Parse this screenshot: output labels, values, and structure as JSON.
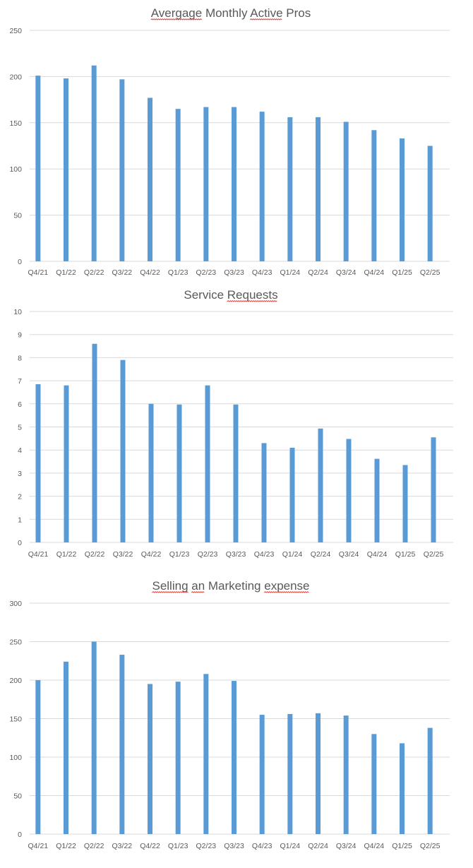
{
  "chart_data": [
    {
      "type": "bar",
      "title": "Avergage Monthly Active Pros",
      "categories": [
        "Q4/21",
        "Q1/22",
        "Q2/22",
        "Q3/22",
        "Q4/22",
        "Q1/23",
        "Q2/23",
        "Q3/23",
        "Q4/23",
        "Q1/24",
        "Q2/24",
        "Q3/24",
        "Q4/24",
        "Q1/25",
        "Q2/25"
      ],
      "values": [
        201,
        198,
        212,
        197,
        177,
        165,
        167,
        167,
        162,
        156,
        156,
        151,
        142,
        133,
        125
      ],
      "ylim": [
        0,
        250
      ],
      "yticks": [
        "0",
        "50",
        "100",
        "150",
        "200",
        "250"
      ],
      "xlabel": "",
      "ylabel": "",
      "grid": true,
      "bar_color": "#5b9bd5",
      "spellcheck_words": [
        "Avergage",
        "Active"
      ]
    },
    {
      "type": "bar",
      "title": "Service Requests",
      "categories": [
        "Q4/21",
        "Q1/22",
        "Q2/22",
        "Q3/22",
        "Q4/22",
        "Q1/23",
        "Q2/23",
        "Q3/23",
        "Q4/23",
        "Q1/24",
        "Q2/24",
        "Q3/24",
        "Q4/24",
        "Q1/25",
        "Q2/25"
      ],
      "values": [
        6.85,
        6.8,
        8.6,
        7.9,
        6.0,
        5.97,
        6.8,
        5.97,
        4.3,
        4.1,
        4.93,
        4.48,
        3.62,
        3.35,
        4.55
      ],
      "ylim": [
        0,
        10
      ],
      "yticks": [
        "0",
        "1",
        "2",
        "3",
        "4",
        "5",
        "6",
        "7",
        "8",
        "9",
        "10"
      ],
      "xlabel": "",
      "ylabel": "",
      "grid": true,
      "bar_color": "#5b9bd5",
      "spellcheck_words": [
        "Requests"
      ]
    },
    {
      "type": "bar",
      "title": "Selling an Marketing expense",
      "categories": [
        "Q4/21",
        "Q1/22",
        "Q2/22",
        "Q3/22",
        "Q4/22",
        "Q1/23",
        "Q2/23",
        "Q3/23",
        "Q4/23",
        "Q1/24",
        "Q2/24",
        "Q3/24",
        "Q4/24",
        "Q1/25",
        "Q2/25"
      ],
      "values": [
        200,
        224,
        250,
        233,
        195,
        198,
        208,
        199,
        155,
        156,
        157,
        154,
        130,
        118,
        138
      ],
      "ylim": [
        0,
        300
      ],
      "yticks": [
        "0",
        "50",
        "100",
        "150",
        "200",
        "250",
        "300"
      ],
      "xlabel": "",
      "ylabel": "",
      "grid": true,
      "bar_color": "#5b9bd5",
      "spellcheck_words": [
        "Selling",
        "an",
        "expense"
      ]
    }
  ]
}
